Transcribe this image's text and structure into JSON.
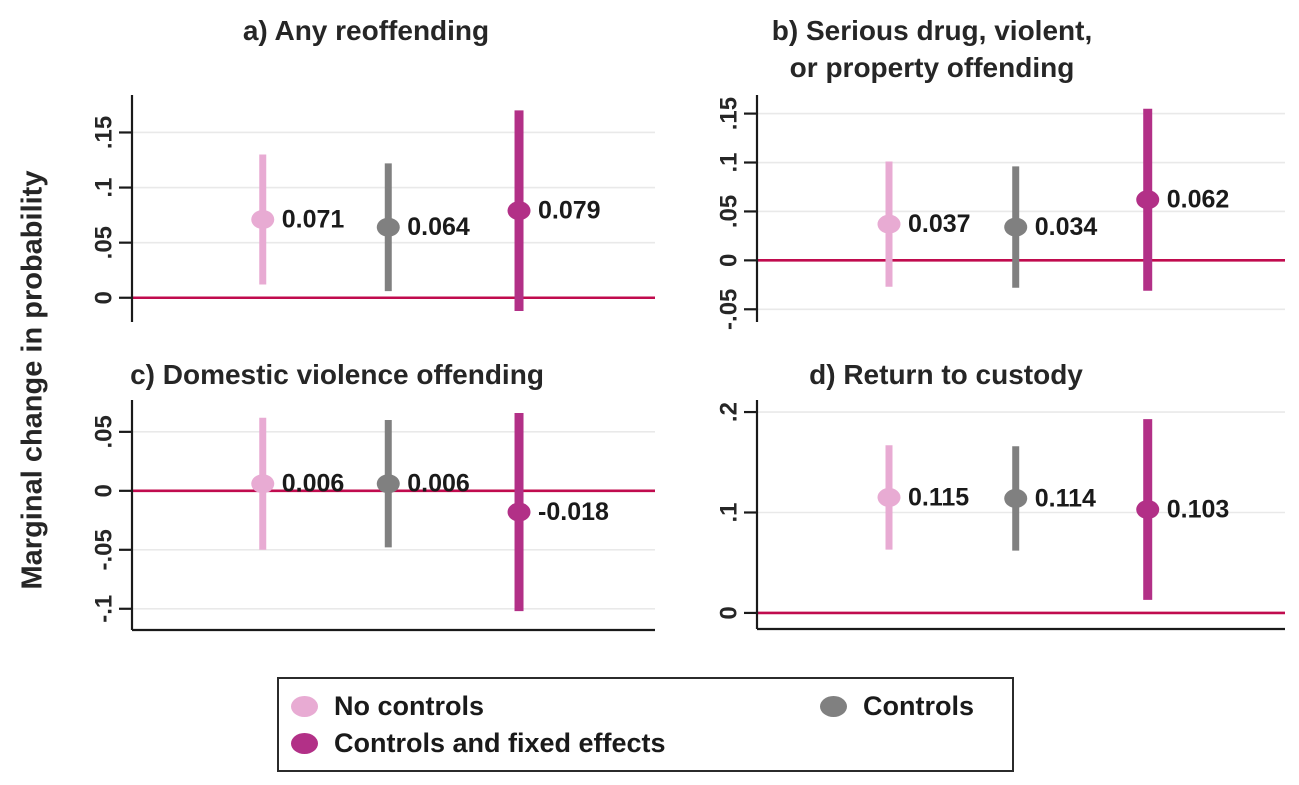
{
  "chart_data": {
    "type": "scatter",
    "subtype": "coefficient-plot-with-95ci",
    "ylabel": "Marginal change in probability",
    "colors": {
      "zero_line": "#c00b4e",
      "grid": "#e9e9e9",
      "axis": "#1a1a1a",
      "text": "#262626"
    },
    "series": [
      {
        "name": "No controls",
        "color": "#e8abd3"
      },
      {
        "name": "Controls",
        "color": "#808080"
      },
      {
        "name": "Controls and fixed effects",
        "color": "#b23087"
      }
    ],
    "legend_position": "bottom-center-boxed",
    "grid": true,
    "panels": [
      {
        "id": "a",
        "title": "a) Any reoffending",
        "ylim": [
          -0.022,
          0.184
        ],
        "yticks": [
          0,
          0.05,
          0.1,
          0.15
        ],
        "ytick_labels": [
          "0",
          ".05",
          ".1",
          ".15"
        ],
        "zero_line": 0,
        "bottom_axis": false,
        "points": [
          {
            "series": "No controls",
            "value": 0.071,
            "label": "0.071",
            "ci_low": 0.012,
            "ci_high": 0.13
          },
          {
            "series": "Controls",
            "value": 0.064,
            "label": "0.064",
            "ci_low": 0.006,
            "ci_high": 0.122
          },
          {
            "series": "Controls and fixed effects",
            "value": 0.079,
            "label": "0.079",
            "ci_low": -0.012,
            "ci_high": 0.17
          }
        ]
      },
      {
        "id": "b",
        "title": "b) Serious drug, violent,\nor property offending",
        "ylim": [
          -0.063,
          0.169
        ],
        "yticks": [
          -0.05,
          0,
          0.05,
          0.1,
          0.15
        ],
        "ytick_labels": [
          "-.05",
          "0",
          ".05",
          ".1",
          ".15"
        ],
        "zero_line": 0,
        "bottom_axis": false,
        "points": [
          {
            "series": "No controls",
            "value": 0.037,
            "label": "0.037",
            "ci_low": -0.027,
            "ci_high": 0.101
          },
          {
            "series": "Controls",
            "value": 0.034,
            "label": "0.034",
            "ci_low": -0.028,
            "ci_high": 0.096
          },
          {
            "series": "Controls and fixed effects",
            "value": 0.062,
            "label": "0.062",
            "ci_low": -0.031,
            "ci_high": 0.155
          }
        ]
      },
      {
        "id": "c",
        "title": "c) Domestic violence offending",
        "ylim": [
          -0.118,
          0.077
        ],
        "yticks": [
          -0.1,
          -0.05,
          0,
          0.05
        ],
        "ytick_labels": [
          "-.1",
          "-.05",
          "0",
          ".05"
        ],
        "zero_line": 0,
        "bottom_axis": true,
        "points": [
          {
            "series": "No controls",
            "value": 0.006,
            "label": "0.006",
            "ci_low": -0.05,
            "ci_high": 0.062
          },
          {
            "series": "Controls",
            "value": 0.006,
            "label": "0.006",
            "ci_low": -0.048,
            "ci_high": 0.06
          },
          {
            "series": "Controls and fixed effects",
            "value": -0.018,
            "label": "-0.018",
            "ci_low": -0.102,
            "ci_high": 0.066
          }
        ]
      },
      {
        "id": "d",
        "title": "d) Return to custody",
        "ylim": [
          -0.016,
          0.212
        ],
        "yticks": [
          0,
          0.1,
          0.2
        ],
        "ytick_labels": [
          "0",
          ".1",
          ".2"
        ],
        "zero_line": 0,
        "bottom_axis": true,
        "points": [
          {
            "series": "No controls",
            "value": 0.115,
            "label": "0.115",
            "ci_low": 0.063,
            "ci_high": 0.167
          },
          {
            "series": "Controls",
            "value": 0.114,
            "label": "0.114",
            "ci_low": 0.062,
            "ci_high": 0.166
          },
          {
            "series": "Controls and fixed effects",
            "value": 0.103,
            "label": "0.103",
            "ci_low": 0.013,
            "ci_high": 0.193
          }
        ]
      }
    ]
  }
}
